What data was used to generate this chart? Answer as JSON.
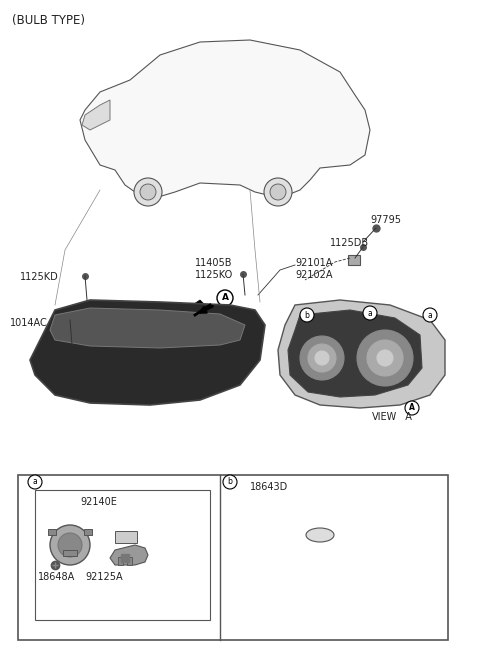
{
  "title": "(BULB TYPE)",
  "part_numbers": {
    "bulb_type": "(BULB TYPE)",
    "97795": "97795",
    "1125DB": "1125DB",
    "11405B": "11405B",
    "1125KO": "1125KO",
    "92101A": "92101A",
    "92102A": "92102A",
    "1125KD": "1125KD",
    "1014AC": "1014AC",
    "92140E": "92140E",
    "18648A": "18648A",
    "92125A": "92125A",
    "18643D": "18643D"
  },
  "bg_color": "#ffffff",
  "line_color": "#333333",
  "text_color": "#222222",
  "box_color": "#000000"
}
